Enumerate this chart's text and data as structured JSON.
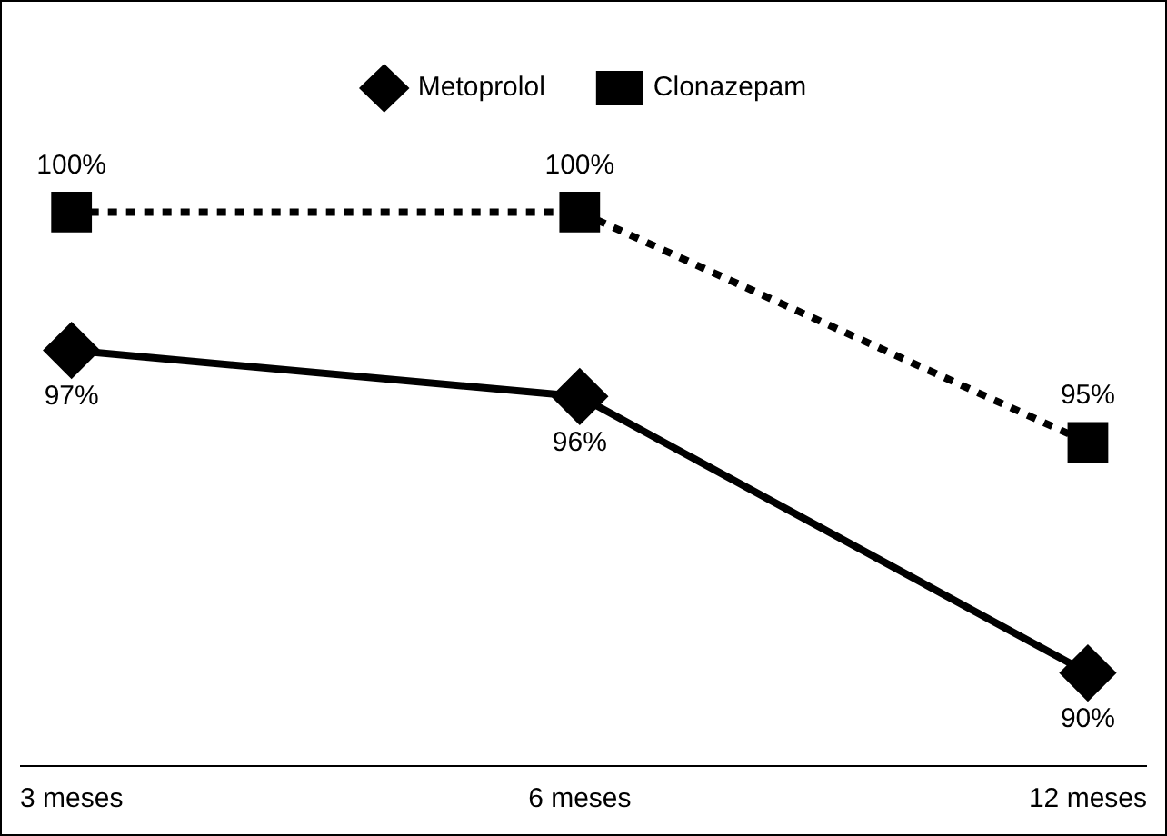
{
  "chart_data": {
    "type": "line",
    "categories": [
      "3 meses",
      "6 meses",
      "12 meses"
    ],
    "series": [
      {
        "name": "Metoprolol",
        "color": "#000000",
        "values": [
          97,
          96,
          90
        ],
        "value_labels": [
          "97%",
          "96%",
          "90%"
        ],
        "marker": "diamond",
        "line_style": "solid"
      },
      {
        "name": "Clonazepam",
        "color": "#000000",
        "values": [
          100,
          100,
          95
        ],
        "value_labels": [
          "100%",
          "100%",
          "95%"
        ],
        "marker": "square",
        "line_style": "dotted"
      }
    ],
    "tick_labels": "x",
    "legend": "top",
    "grid": false
  }
}
